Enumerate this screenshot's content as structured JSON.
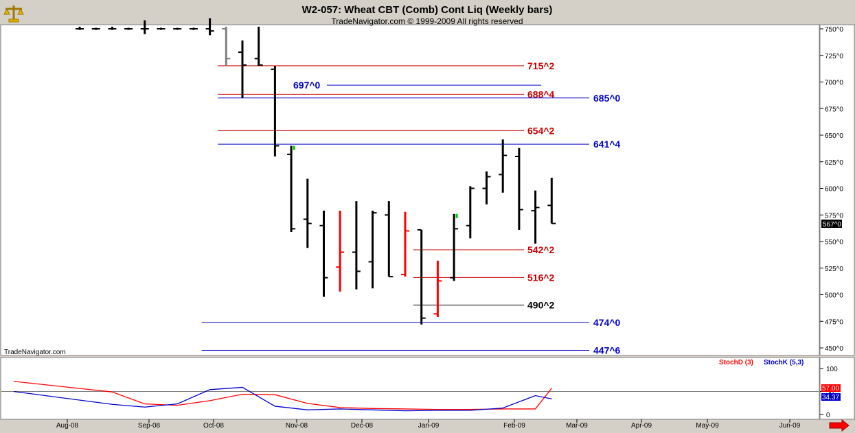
{
  "header": {
    "title": "W2-057:  Wheat CBT (Comb) Cont Liq  (Weekly bars)",
    "subtitle": "TradeNavigator.com © 1999-2009 All rights reserved"
  },
  "watermark": "TradeNavigator.com",
  "icons": {
    "top_left": "scales-logo-icon",
    "bottom_right": "scroll-right-arrow-icon"
  },
  "colors": {
    "up_bar": "#00cc00",
    "down_bar": "#ff0000",
    "neutral_bar": "#000000",
    "gap_bar": "#808080",
    "resistance": "#cc0000",
    "support": "#0000cc",
    "pivot": "#000000",
    "stoch_d": "#ff0000",
    "stoch_k": "#0000cc"
  },
  "chart_data": [
    {
      "type": "ohlc",
      "ylim": [
        437,
        755
      ],
      "y_ticks": [
        450,
        475,
        500,
        525,
        550,
        575,
        600,
        625,
        650,
        675,
        700,
        725,
        750
      ],
      "y_tick_labels": [
        "450^0",
        "475^0",
        "500^0",
        "525^0",
        "550^0",
        "575^0",
        "600^0",
        "625^0",
        "650^0",
        "675^0",
        "700^0",
        "725^0",
        "750^0"
      ],
      "last_price_label": "567^0",
      "x_labels": [
        "Aug-08",
        "Sep-08",
        "Oct-08",
        "Nov-08",
        "Dec-08",
        "Jan-09",
        "Feb-09",
        "Mar-09",
        "Apr-09",
        "May-09",
        "Jun-09"
      ],
      "bars": [
        {
          "w": 0,
          "h": 752,
          "l": 749,
          "o": 750,
          "c": 750,
          "color": "neutral"
        },
        {
          "w": 1,
          "h": 751,
          "l": 749,
          "o": 750,
          "c": 750,
          "color": "neutral"
        },
        {
          "w": 2,
          "h": 752,
          "l": 749,
          "o": 750,
          "c": 750,
          "color": "neutral"
        },
        {
          "w": 3,
          "h": 751,
          "l": 749,
          "o": 750,
          "c": 750,
          "color": "neutral"
        },
        {
          "w": 4,
          "h": 758,
          "l": 745,
          "o": 750,
          "c": 750,
          "color": "neutral"
        },
        {
          "w": 5,
          "h": 751,
          "l": 749,
          "o": 750,
          "c": 750,
          "color": "neutral"
        },
        {
          "w": 6,
          "h": 751,
          "l": 749,
          "o": 750,
          "c": 750,
          "color": "neutral"
        },
        {
          "w": 7,
          "h": 751,
          "l": 749,
          "o": 750,
          "c": 750,
          "color": "neutral"
        },
        {
          "w": 8,
          "h": 760,
          "l": 744,
          "o": 750,
          "c": 748,
          "color": "neutral"
        },
        {
          "w": 9,
          "h": 752,
          "l": 715,
          "o": 750,
          "c": 722,
          "color": "gap"
        },
        {
          "w": 10,
          "h": 739,
          "l": 685,
          "o": 728,
          "c": 716,
          "color": "neutral"
        },
        {
          "w": 11,
          "h": 752,
          "l": 715,
          "o": 722,
          "c": 716,
          "color": "neutral"
        },
        {
          "w": 12,
          "h": 715,
          "l": 630,
          "o": 712,
          "c": 640,
          "color": "neutral"
        },
        {
          "w": 13,
          "h": 640,
          "l": 559,
          "o": 632,
          "c": 562,
          "color": "neutral"
        },
        {
          "w": 14,
          "h": 609,
          "l": 544,
          "o": 571,
          "c": 567,
          "color": "neutral"
        },
        {
          "w": 15,
          "h": 579,
          "l": 498,
          "o": 565,
          "c": 516,
          "color": "neutral"
        },
        {
          "w": 16,
          "h": 579,
          "l": 503,
          "o": 526,
          "c": 540,
          "color": "down"
        },
        {
          "w": 17,
          "h": 588,
          "l": 505,
          "o": 540,
          "c": 522,
          "color": "neutral"
        },
        {
          "w": 18,
          "h": 579,
          "l": 506,
          "o": 531,
          "c": 577,
          "color": "neutral"
        },
        {
          "w": 19,
          "h": 588,
          "l": 517,
          "o": 575,
          "c": 517,
          "color": "neutral"
        },
        {
          "w": 20,
          "h": 578,
          "l": 517,
          "o": 519,
          "c": 560,
          "color": "down"
        },
        {
          "w": 21,
          "h": 561,
          "l": 472,
          "o": 561,
          "c": 478,
          "color": "neutral"
        },
        {
          "w": 22,
          "h": 532,
          "l": 479,
          "o": 482,
          "c": 513,
          "color": "down"
        },
        {
          "w": 23,
          "h": 576,
          "l": 513,
          "o": 516,
          "c": 562,
          "color": "neutral"
        },
        {
          "w": 24,
          "h": 602,
          "l": 553,
          "o": 565,
          "c": 600,
          "color": "neutral"
        },
        {
          "w": 25,
          "h": 616,
          "l": 585,
          "o": 600,
          "c": 611,
          "color": "neutral"
        },
        {
          "w": 26,
          "h": 646,
          "l": 596,
          "o": 613,
          "c": 631,
          "color": "neutral"
        },
        {
          "w": 27,
          "h": 638,
          "l": 561,
          "o": 630,
          "c": 580,
          "color": "neutral"
        },
        {
          "w": 28,
          "h": 598,
          "l": 548,
          "o": 579,
          "c": 582,
          "color": "neutral"
        },
        {
          "w": 29,
          "h": 610,
          "l": 567,
          "o": 584,
          "c": 567,
          "color": "neutral"
        }
      ],
      "levels": [
        {
          "label": "715^2",
          "value": 715.25,
          "kind": "resistance",
          "from": 9,
          "to": 35
        },
        {
          "label": "697^0",
          "value": 697,
          "kind": "support",
          "from": 29,
          "to": 35
        },
        {
          "label": "688^4",
          "value": 688.5,
          "kind": "resistance",
          "from": 9,
          "to": 35
        },
        {
          "label": "685^0",
          "value": 685,
          "kind": "support",
          "from": 9,
          "to": 40
        },
        {
          "label": "654^2",
          "value": 654.25,
          "kind": "resistance",
          "from": 9,
          "to": 35
        },
        {
          "label": "641^4",
          "value": 641.5,
          "kind": "support",
          "from": 9,
          "to": 40
        },
        {
          "label": "542^2",
          "value": 542.25,
          "kind": "resistance",
          "from": 21,
          "to": 35
        },
        {
          "label": "516^2",
          "value": 516.25,
          "kind": "resistance",
          "from": 21,
          "to": 35
        },
        {
          "label": "490^2",
          "value": 490.25,
          "kind": "pivot",
          "from": 21,
          "to": 35
        },
        {
          "label": "474^0",
          "value": 474,
          "kind": "support",
          "from": 8,
          "to": 40
        },
        {
          "label": "447^6",
          "value": 447.75,
          "kind": "support",
          "from": 8,
          "to": 40
        }
      ]
    },
    {
      "type": "line",
      "ylim": [
        0,
        100
      ],
      "y_ticks": [
        0,
        50,
        100
      ],
      "y_tick_labels": [
        "0",
        "50",
        "100"
      ],
      "legend": [
        {
          "name": "StochD (3)",
          "color": "#ff0000"
        },
        {
          "name": "StochK (5,3)",
          "color": "#0000cc"
        }
      ],
      "last_values": {
        "d": "57.00",
        "k": "34.37"
      },
      "series": [
        {
          "name": "StochD (3)",
          "color": "#ff0000",
          "x": [
            0,
            2,
            4,
            6,
            8,
            10,
            12,
            14,
            16,
            18,
            20,
            22,
            24,
            26,
            28,
            29
          ],
          "values": [
            72,
            49,
            23,
            20,
            30,
            44,
            43,
            24,
            15,
            13,
            12,
            11,
            11,
            12,
            12,
            57
          ]
        },
        {
          "name": "StochK (5,3)",
          "color": "#0000cc",
          "x": [
            0,
            2,
            4,
            6,
            8,
            10,
            12,
            14,
            16,
            18,
            20,
            22,
            24,
            26,
            28,
            29
          ],
          "values": [
            50,
            22,
            16,
            23,
            54,
            59,
            18,
            10,
            12,
            10,
            8,
            9,
            9,
            14,
            41,
            34
          ]
        }
      ]
    }
  ]
}
